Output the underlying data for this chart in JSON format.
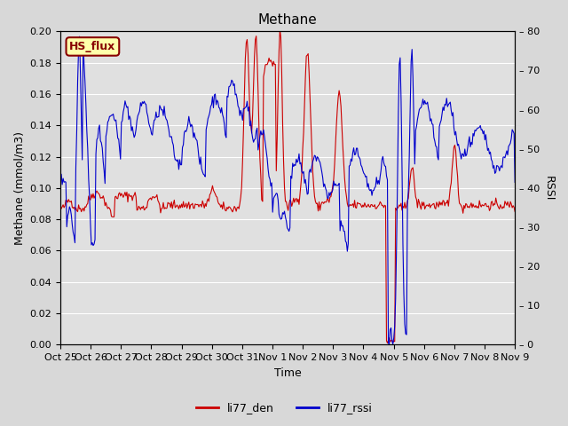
{
  "title": "Methane",
  "ylabel_left": "Methane (mmol/m3)",
  "ylabel_right": "RSSI",
  "xlabel": "Time",
  "ylim_left": [
    0.0,
    0.2
  ],
  "ylim_right": [
    0,
    80
  ],
  "yticks_left": [
    0.0,
    0.02,
    0.04,
    0.06,
    0.08,
    0.1,
    0.12,
    0.14,
    0.16,
    0.18,
    0.2
  ],
  "yticks_right": [
    0,
    10,
    20,
    30,
    40,
    50,
    60,
    70,
    80
  ],
  "xtick_labels": [
    "Oct 25",
    "Oct 26",
    "Oct 27",
    "Oct 28",
    "Oct 29",
    "Oct 30",
    "Oct 31",
    "Nov 1",
    "Nov 2",
    "Nov 3",
    "Nov 4",
    "Nov 5",
    "Nov 6",
    "Nov 7",
    "Nov 8",
    "Nov 9"
  ],
  "line1_color": "#cc0000",
  "line2_color": "#0000cc",
  "line1_label": "li77_den",
  "line2_label": "li77_rssi",
  "legend_box_label": "HS_flux",
  "legend_box_facecolor": "#ffffaa",
  "legend_box_edgecolor": "#880000",
  "fig_facecolor": "#d8d8d8",
  "plot_bg_color": "#e0e0e0",
  "grid_color": "#ffffff",
  "title_fontsize": 11,
  "axis_label_fontsize": 9,
  "tick_fontsize": 8,
  "n_points": 500
}
